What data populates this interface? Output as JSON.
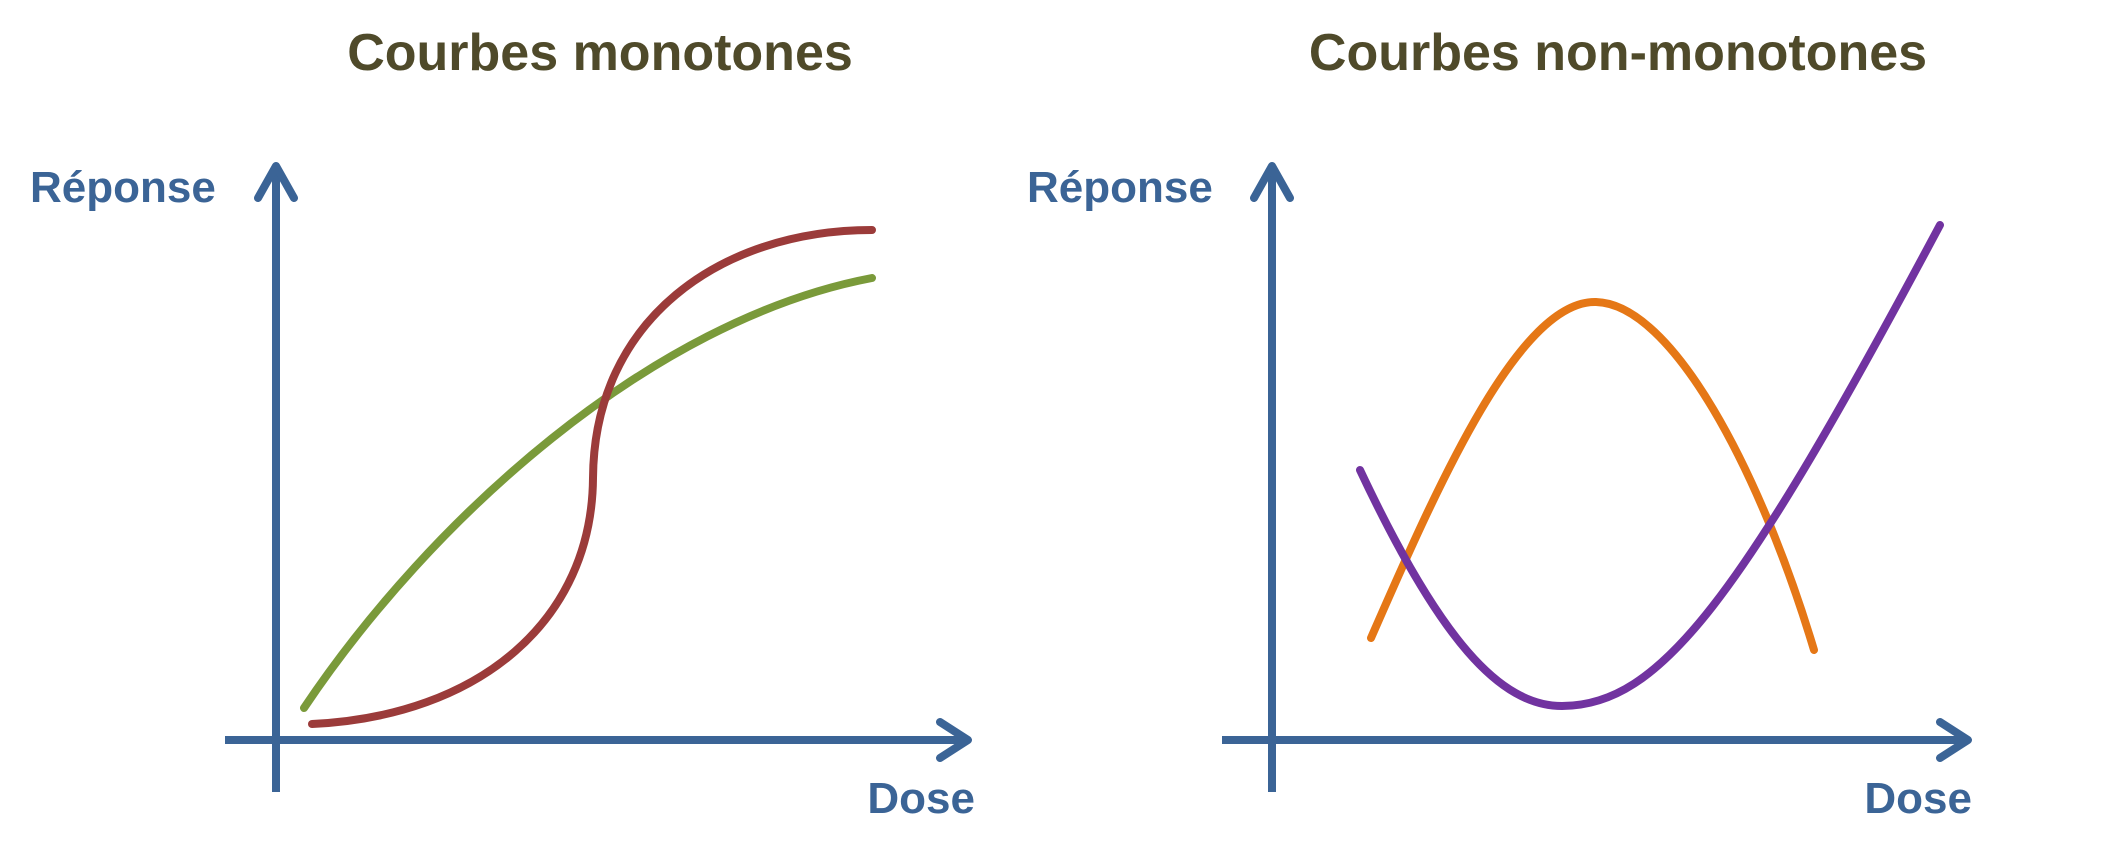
{
  "colors": {
    "title": "#4f4a2a",
    "axis": "#3b6496",
    "green_curve": "#7a9a3a",
    "red_curve": "#9b3b3a",
    "orange_curve": "#e57716",
    "purple_curve": "#7133a0"
  },
  "left_panel": {
    "title": "Courbes monotones",
    "y_label": "Réponse",
    "x_label": "Dose",
    "curves": [
      {
        "name": "",
        "color_key": "green_curve",
        "shape": "concave-increasing"
      },
      {
        "name": "",
        "color_key": "red_curve",
        "shape": "sigmoid-increasing"
      }
    ]
  },
  "right_panel": {
    "title": "Courbes non-monotones",
    "y_label": "Réponse",
    "x_label": "Dose",
    "curves": [
      {
        "name": "",
        "color_key": "orange_curve",
        "shape": "inverted-U"
      },
      {
        "name": "",
        "color_key": "purple_curve",
        "shape": "U"
      }
    ]
  }
}
